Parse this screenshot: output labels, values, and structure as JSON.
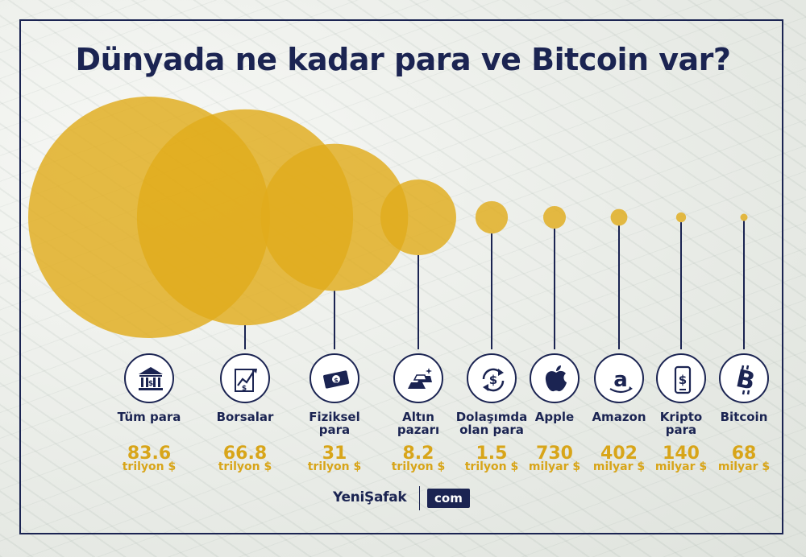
{
  "title": "Dünyada ne kadar para ve Bitcoin var?",
  "colors": {
    "circle": "#e0ac1c",
    "navy": "#1b2452",
    "value": "#d8a519"
  },
  "footer": {
    "brand": "YeniŞafak",
    "suffix": "com"
  },
  "chart_data": {
    "type": "bubble",
    "title": "Dünyada ne kadar para ve Bitcoin var?",
    "categories": [
      "Tüm para",
      "Borsalar",
      "Fiziksel para",
      "Altın pazarı",
      "Dolaşımda olan para",
      "Apple",
      "Amazon",
      "Kripto para",
      "Bitcoin"
    ],
    "values_trillion_usd": [
      83.6,
      66.8,
      31,
      8.2,
      1.5,
      0.73,
      0.402,
      0.14,
      0.068
    ],
    "items": [
      {
        "label": "Tüm para",
        "value": "83.6",
        "unit": "trilyon $",
        "icon": "bank-icon"
      },
      {
        "label": "Borsalar",
        "value": "66.8",
        "unit": "trilyon $",
        "icon": "stock-chart-icon"
      },
      {
        "label": "Fiziksel para",
        "value": "31",
        "unit": "trilyon $",
        "icon": "banknote-icon"
      },
      {
        "label": "Altın pazarı",
        "value": "8.2",
        "unit": "trilyon $",
        "icon": "gold-bars-icon"
      },
      {
        "label": "Dolaşımda olan para",
        "value": "1.5",
        "unit": "trilyon $",
        "icon": "circulation-icon"
      },
      {
        "label": "Apple",
        "value": "730",
        "unit": "milyar $",
        "icon": "apple-icon"
      },
      {
        "label": "Amazon",
        "value": "402",
        "unit": "milyar $",
        "icon": "amazon-icon"
      },
      {
        "label": "Kripto para",
        "value": "140",
        "unit": "milyar $",
        "icon": "phone-dollar-icon"
      },
      {
        "label": "Bitcoin",
        "value": "68",
        "unit": "milyar $",
        "icon": "bitcoin-icon"
      }
    ]
  }
}
